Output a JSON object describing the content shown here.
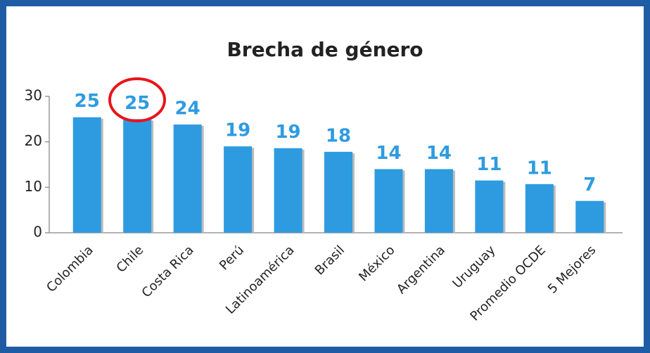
{
  "chart_data": {
    "type": "bar",
    "title": "Brecha de género",
    "categories": [
      "Colombia",
      "Chile",
      "Costa Rica",
      "Perú",
      "Latinoamérica",
      "Brasil",
      "México",
      "Argentina",
      "Uruguay",
      "Promedio OCDE",
      "5 Mejores"
    ],
    "values": [
      25.4,
      25,
      23.8,
      19,
      18.6,
      17.8,
      14,
      14,
      11.5,
      10.7,
      7
    ],
    "value_labels": [
      "25",
      "25",
      "24",
      "19",
      "19",
      "18",
      "14",
      "14",
      "11",
      "11",
      "7"
    ],
    "color": "#2e9be0",
    "ylim": [
      0,
      30
    ],
    "yticks": [
      0,
      10,
      20,
      30
    ],
    "grid": false
  }
}
